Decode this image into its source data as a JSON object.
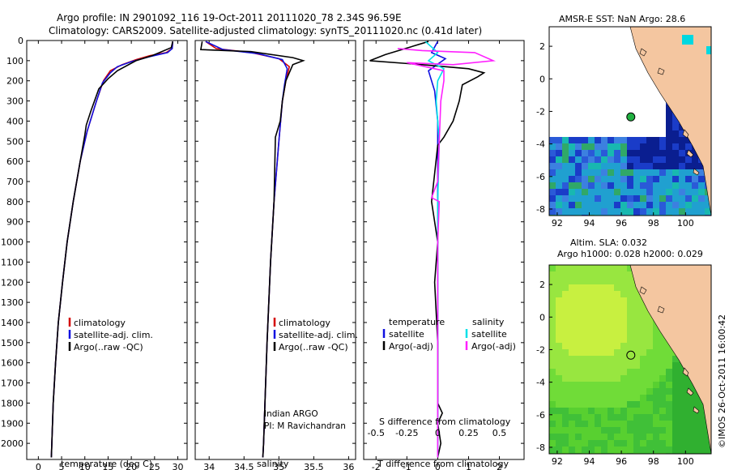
{
  "header": {
    "line1": "Argo profile: IN 2901092_116 19-Oct-2011 20111020_78 2.34S 96.59E",
    "line2": "Climatology: CARS2009. Satellite-adjusted climatology: synTS_20111020.nc (0.41d later)"
  },
  "colors": {
    "climatology": "#d40000",
    "satellite": "#1010e0",
    "argo": "#000000",
    "satellite_s": "#00e0e8",
    "argo_s": "#ff20ff",
    "land": "#f4c6a0",
    "no_data": "#ffffff"
  },
  "depth_axis": {
    "range": [
      0,
      2080
    ],
    "ticks": [
      0,
      100,
      200,
      300,
      400,
      500,
      600,
      700,
      800,
      900,
      1000,
      1100,
      1200,
      1300,
      1400,
      1500,
      1600,
      1700,
      1800,
      1900,
      2000
    ]
  },
  "charts": {
    "temperature": {
      "type": "line",
      "xlabel": "temperature (deg C)",
      "xlim": [
        -2.5,
        32
      ],
      "xticks": [
        0,
        5,
        10,
        15,
        20,
        25,
        30
      ],
      "legend": [
        "climatology",
        "satellite-adj. clim.",
        "Argo(..raw -QC)"
      ],
      "series": [
        {
          "name": "climatology",
          "color_key": "climatology",
          "points": [
            [
              28.9,
              5
            ],
            [
              28.8,
              40
            ],
            [
              27.5,
              60
            ],
            [
              24,
              75
            ],
            [
              21,
              95
            ],
            [
              18,
              120
            ],
            [
              15.5,
              150
            ],
            [
              14,
              200
            ],
            [
              12.5,
              300
            ],
            [
              10.5,
              450
            ],
            [
              9,
              600
            ],
            [
              7.5,
              800
            ],
            [
              6.2,
              1000
            ],
            [
              5.2,
              1200
            ],
            [
              4.3,
              1400
            ],
            [
              3.7,
              1600
            ],
            [
              3.2,
              1800
            ],
            [
              2.9,
              2000
            ],
            [
              2.8,
              2070
            ]
          ]
        },
        {
          "name": "satellite-adj. clim.",
          "color_key": "satellite",
          "points": [
            [
              28.9,
              5
            ],
            [
              28.8,
              40
            ],
            [
              27.8,
              60
            ],
            [
              24,
              80
            ],
            [
              20,
              105
            ],
            [
              17,
              130
            ],
            [
              15.5,
              160
            ],
            [
              13.8,
              210
            ],
            [
              12.5,
              300
            ],
            [
              10.5,
              450
            ],
            [
              9,
              600
            ],
            [
              7.5,
              800
            ],
            [
              6.2,
              1000
            ],
            [
              5.2,
              1200
            ],
            [
              4.3,
              1400
            ],
            [
              3.7,
              1600
            ],
            [
              3.2,
              1800
            ],
            [
              2.9,
              2000
            ],
            [
              2.8,
              2070
            ]
          ]
        },
        {
          "name": "Argo(..raw -QC)",
          "color_key": "argo",
          "points": [
            [
              28.9,
              5
            ],
            [
              28.6,
              35
            ],
            [
              24.5,
              75
            ],
            [
              21,
              100
            ],
            [
              17,
              150
            ],
            [
              15,
              190
            ],
            [
              13,
              240
            ],
            [
              11.3,
              350
            ],
            [
              10.3,
              420
            ],
            [
              10,
              470
            ],
            [
              9,
              600
            ],
            [
              7.5,
              800
            ],
            [
              6.2,
              1000
            ],
            [
              5.2,
              1200
            ],
            [
              4.3,
              1400
            ],
            [
              3.7,
              1600
            ],
            [
              3.2,
              1800
            ],
            [
              2.9,
              2000
            ],
            [
              2.8,
              2070
            ]
          ]
        }
      ]
    },
    "salinity": {
      "type": "line",
      "xlabel": "salinity",
      "xlim": [
        33.8,
        36.1
      ],
      "xticks": [
        34,
        34.5,
        35,
        35.5,
        36
      ],
      "legend": [
        "climatology",
        "satellite-adj. clim.",
        "Argo(..raw -QC)"
      ],
      "annotation": [
        "Indian ARGO",
        "PI: M Ravichandran"
      ],
      "series": [
        {
          "name": "climatology",
          "color_key": "climatology",
          "points": [
            [
              33.95,
              5
            ],
            [
              34.1,
              40
            ],
            [
              34.6,
              60
            ],
            [
              35.0,
              90
            ],
            [
              35.15,
              130
            ],
            [
              35.1,
              200
            ],
            [
              35.05,
              300
            ],
            [
              35.0,
              500
            ],
            [
              34.93,
              800
            ],
            [
              34.88,
              1100
            ],
            [
              34.83,
              1500
            ],
            [
              34.8,
              1800
            ],
            [
              34.78,
              2000
            ],
            [
              34.77,
              2070
            ]
          ]
        },
        {
          "name": "satellite-adj. clim.",
          "color_key": "satellite",
          "points": [
            [
              33.95,
              5
            ],
            [
              34.2,
              45
            ],
            [
              34.7,
              65
            ],
            [
              35.05,
              95
            ],
            [
              35.12,
              140
            ],
            [
              35.08,
              220
            ],
            [
              35.05,
              300
            ],
            [
              35.0,
              500
            ],
            [
              34.93,
              800
            ],
            [
              34.88,
              1100
            ],
            [
              34.83,
              1500
            ],
            [
              34.8,
              1800
            ],
            [
              34.78,
              2000
            ],
            [
              34.77,
              2070
            ]
          ]
        },
        {
          "name": "Argo(..raw -QC)",
          "color_key": "argo",
          "points": [
            [
              33.9,
              5
            ],
            [
              33.88,
              45
            ],
            [
              34.6,
              55
            ],
            [
              35.2,
              85
            ],
            [
              35.35,
              100
            ],
            [
              35.2,
              120
            ],
            [
              35.1,
              200
            ],
            [
              35.05,
              300
            ],
            [
              35.02,
              400
            ],
            [
              34.95,
              480
            ],
            [
              34.93,
              800
            ],
            [
              34.88,
              1100
            ],
            [
              34.83,
              1500
            ],
            [
              34.8,
              1800
            ],
            [
              34.78,
              2000
            ],
            [
              34.77,
              2070
            ]
          ]
        }
      ]
    },
    "difference": {
      "type": "line",
      "xlabel": "T difference from climatology",
      "xlabel_top": "S difference from climatology",
      "xlim": [
        -2.4,
        2.8
      ],
      "xticks": [
        -2,
        -1,
        0,
        1,
        2
      ],
      "xticks_s": [
        {
          "label": "-0.5",
          "at": -2
        },
        {
          "label": "-0.25",
          "at": -1
        },
        {
          "label": "0",
          "at": 0
        },
        {
          "label": "0.25",
          "at": 1
        },
        {
          "label": "0.5",
          "at": 2
        }
      ],
      "legend": {
        "temperature": {
          "heading": "temperature",
          "items": [
            "satellite",
            "Argo(-adj)"
          ]
        },
        "salinity": {
          "heading": "salinity",
          "items": [
            "satellite",
            "Argo(-adj)"
          ]
        }
      },
      "series": [
        {
          "name": "T satellite",
          "color_key": "satellite",
          "points": [
            [
              0,
              5
            ],
            [
              -0.2,
              60
            ],
            [
              0.25,
              90
            ],
            [
              -0.3,
              150
            ],
            [
              -0.1,
              250
            ],
            [
              0,
              400
            ],
            [
              0,
              700
            ],
            [
              0,
              1000
            ],
            [
              0,
              1400
            ],
            [
              0,
              1800
            ],
            [
              0,
              2070
            ]
          ]
        },
        {
          "name": "T Argo(-adj)",
          "color_key": "argo",
          "points": [
            [
              -0.3,
              5
            ],
            [
              -1.7,
              70
            ],
            [
              -2.2,
              100
            ],
            [
              -0.5,
              120
            ],
            [
              1.0,
              140
            ],
            [
              1.5,
              160
            ],
            [
              1.3,
              180
            ],
            [
              0.8,
              220
            ],
            [
              0.7,
              300
            ],
            [
              0.5,
              400
            ],
            [
              0.2,
              480
            ],
            [
              0,
              520
            ],
            [
              -0.2,
              800
            ],
            [
              0,
              1000
            ],
            [
              -0.1,
              1200
            ],
            [
              0,
              1500
            ],
            [
              0,
              1800
            ],
            [
              0.15,
              1850
            ],
            [
              0,
              1900
            ],
            [
              0.1,
              2000
            ],
            [
              0,
              2070
            ]
          ]
        },
        {
          "name": "S satellite",
          "color_key": "satellite_s",
          "points": [
            [
              -0.4,
              5
            ],
            [
              0,
              60
            ],
            [
              -0.3,
              100
            ],
            [
              0.2,
              140
            ],
            [
              0,
              200
            ],
            [
              -0.05,
              300
            ],
            [
              0.05,
              500
            ],
            [
              0,
              800
            ],
            [
              0,
              1000
            ],
            [
              0,
              1500
            ],
            [
              0,
              2070
            ]
          ]
        },
        {
          "name": "S Argo(-adj)",
          "color_key": "argo_s",
          "points": [
            [
              -1.3,
              40
            ],
            [
              -0.5,
              50
            ],
            [
              1.2,
              60
            ],
            [
              1.8,
              100
            ],
            [
              0.5,
              120
            ],
            [
              -1.0,
              110
            ],
            [
              0.2,
              150
            ],
            [
              0.2,
              200
            ],
            [
              0.1,
              300
            ],
            [
              0.05,
              500
            ],
            [
              0,
              700
            ],
            [
              -0.2,
              780
            ],
            [
              0.05,
              800
            ],
            [
              0,
              1000
            ],
            [
              0,
              1500
            ],
            [
              0,
              2070
            ]
          ]
        }
      ]
    }
  },
  "maps": {
    "sst": {
      "title": "AMSR-E SST: NaN Argo: 28.6",
      "lon_range": [
        91.5,
        101.6
      ],
      "lat_range": [
        -8.4,
        3.2
      ],
      "xticks": [
        92,
        94,
        96,
        98,
        100
      ],
      "yticks": [
        2,
        0,
        -2,
        -4,
        -6,
        -8
      ]
    },
    "sla": {
      "title_line1": "Altim. SLA: 0.032",
      "title_line2": "Argo h1000: 0.028 h2000: 0.029",
      "lon_range": [
        91.5,
        101.6
      ],
      "lat_range": [
        -8.4,
        3.2
      ],
      "xticks": [
        92,
        94,
        96,
        98,
        100
      ],
      "yticks": [
        2,
        0,
        -2,
        -4,
        -6,
        -8
      ]
    },
    "argo_position": {
      "lon": 96.59,
      "lat": -2.34
    }
  },
  "footer": {
    "stamp": "©IMOS 26-Oct-2011 16:00:42"
  }
}
